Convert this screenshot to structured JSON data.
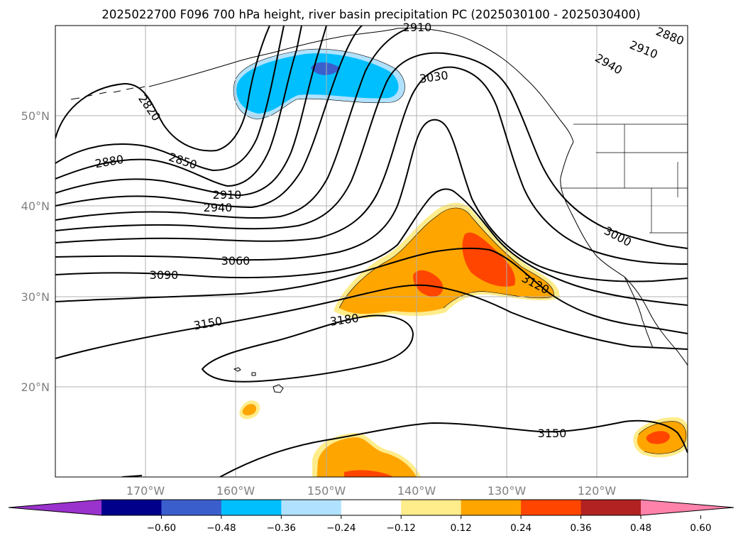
{
  "title": "2025022700 F096 700 hPa height, river basin precipitation PC (2025030100 - 2025030400)",
  "map": {
    "lon_labels": [
      "170°W",
      "160°W",
      "150°W",
      "140°W",
      "130°W",
      "120°W"
    ],
    "lat_labels": [
      "50°N",
      "40°N",
      "30°N",
      "20°N"
    ],
    "grid": true
  },
  "contour_labels": [
    "2910",
    "2880",
    "2910",
    "2940",
    "3030",
    "2820",
    "2850",
    "2880",
    "2910",
    "2940",
    "3000",
    "3060",
    "3090",
    "3120",
    "3150",
    "3180",
    "3150"
  ],
  "colorbar": {
    "tick_labels": [
      "−0.60",
      "−0.48",
      "−0.36",
      "−0.24",
      "−0.12",
      "0.12",
      "0.24",
      "0.36",
      "0.48",
      "0.60"
    ],
    "colors": [
      "#9a32cd",
      "#00008b",
      "#3a5fcd",
      "#00bfff",
      "#b0e2ff",
      "#ffffff",
      "#ffec8b",
      "#ffa500",
      "#ff4500",
      "#b22222",
      "#ff82ab"
    ],
    "extend": "both"
  },
  "fill_colors": {
    "neg_light": "#b0e2ff",
    "neg_mid": "#00bfff",
    "neg_strong": "#3a5fcd",
    "pos_light": "#ffec8b",
    "pos_mid": "#ffa500",
    "pos_strong": "#ff4500"
  }
}
